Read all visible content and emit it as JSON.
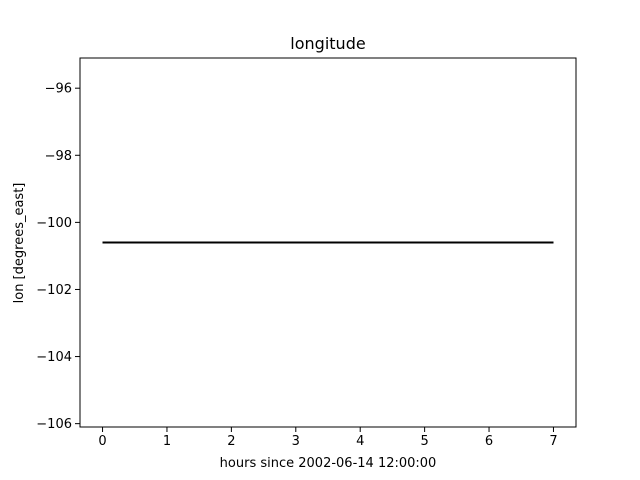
{
  "chart_data": {
    "type": "line",
    "title": "longitude",
    "xlabel": "hours since 2002-06-14 12:00:00",
    "ylabel": "lon [degrees_east]",
    "xlim": [
      -0.35,
      7.35
    ],
    "ylim": [
      -106.1,
      -95.1
    ],
    "xticks": [
      0,
      1,
      2,
      3,
      4,
      5,
      6,
      7
    ],
    "xtick_labels": [
      "0",
      "1",
      "2",
      "3",
      "4",
      "5",
      "6",
      "7"
    ],
    "yticks": [
      -96,
      -98,
      -100,
      -102,
      -104,
      -106
    ],
    "ytick_labels": [
      "−96",
      "−98",
      "−100",
      "−102",
      "−104",
      "−106"
    ],
    "grid": false,
    "series": [
      {
        "color": "#000000",
        "x": [
          0,
          1,
          2,
          3,
          4,
          5,
          6,
          7
        ],
        "y": [
          -100.6,
          -100.6,
          -100.6,
          -100.6,
          -100.6,
          -100.6,
          -100.6,
          -100.6
        ]
      }
    ]
  }
}
